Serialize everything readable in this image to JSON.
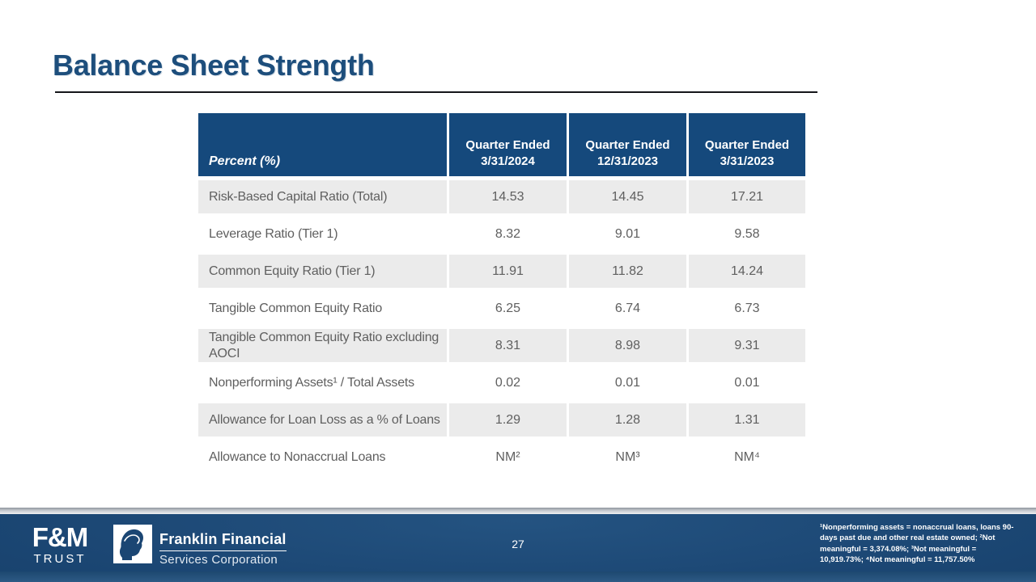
{
  "slide": {
    "title": "Balance Sheet Strength",
    "page_number": "27",
    "footnote": "¹Nonperforming assets = nonaccrual loans, loans 90-days past due and  other real estate owned;  ²Not meaningful = 3,374.08%; ³Not meaningful = 10,919.73%; ⁴Not meaningful = 11,757.50%"
  },
  "table": {
    "header": {
      "label": "Percent (%)",
      "columns": [
        "Quarter Ended\n3/31/2024",
        "Quarter Ended\n12/31/2023",
        "Quarter Ended\n3/31/2023"
      ]
    },
    "rows": [
      {
        "label": "Risk-Based Capital Ratio (Total)",
        "values": [
          "14.53",
          "14.45",
          "17.21"
        ],
        "shaded": true
      },
      {
        "label": "Leverage Ratio (Tier 1)",
        "values": [
          "8.32",
          "9.01",
          "9.58"
        ],
        "shaded": false
      },
      {
        "label": "Common Equity Ratio (Tier 1)",
        "values": [
          "11.91",
          "11.82",
          "14.24"
        ],
        "shaded": true
      },
      {
        "label": "Tangible Common Equity Ratio",
        "values": [
          "6.25",
          "6.74",
          "6.73"
        ],
        "shaded": false
      },
      {
        "label": "Tangible Common Equity Ratio excluding AOCI",
        "values": [
          "8.31",
          "8.98",
          "9.31"
        ],
        "shaded": true
      },
      {
        "label": "Nonperforming Assets¹ / Total Assets",
        "values": [
          "0.02",
          "0.01",
          "0.01"
        ],
        "shaded": false
      },
      {
        "label": "Allowance for Loan Loss as a % of Loans",
        "values": [
          "1.29",
          "1.28",
          "1.31"
        ],
        "shaded": true
      },
      {
        "label": "Allowance to Nonaccrual Loans",
        "values": [
          "NM²",
          "NM³",
          "NM⁴"
        ],
        "shaded": false
      }
    ]
  },
  "footer": {
    "fm_logo_top": "F&M",
    "fm_logo_bottom": "TRUST",
    "franklin_line1": "Franklin Financial",
    "franklin_line2": "Services Corporation",
    "franklin_icon": "franklin-profile-icon"
  },
  "colors": {
    "title_blue": "#1d4e7c",
    "header_navy": "#15497c",
    "row_shaded_gray": "#ebebeb",
    "body_text_gray": "#5f5f5f",
    "footer_navy": "#1b4673",
    "footer_bottom_blue": "#2d5a85",
    "silver_strip": "#c6cad0"
  }
}
